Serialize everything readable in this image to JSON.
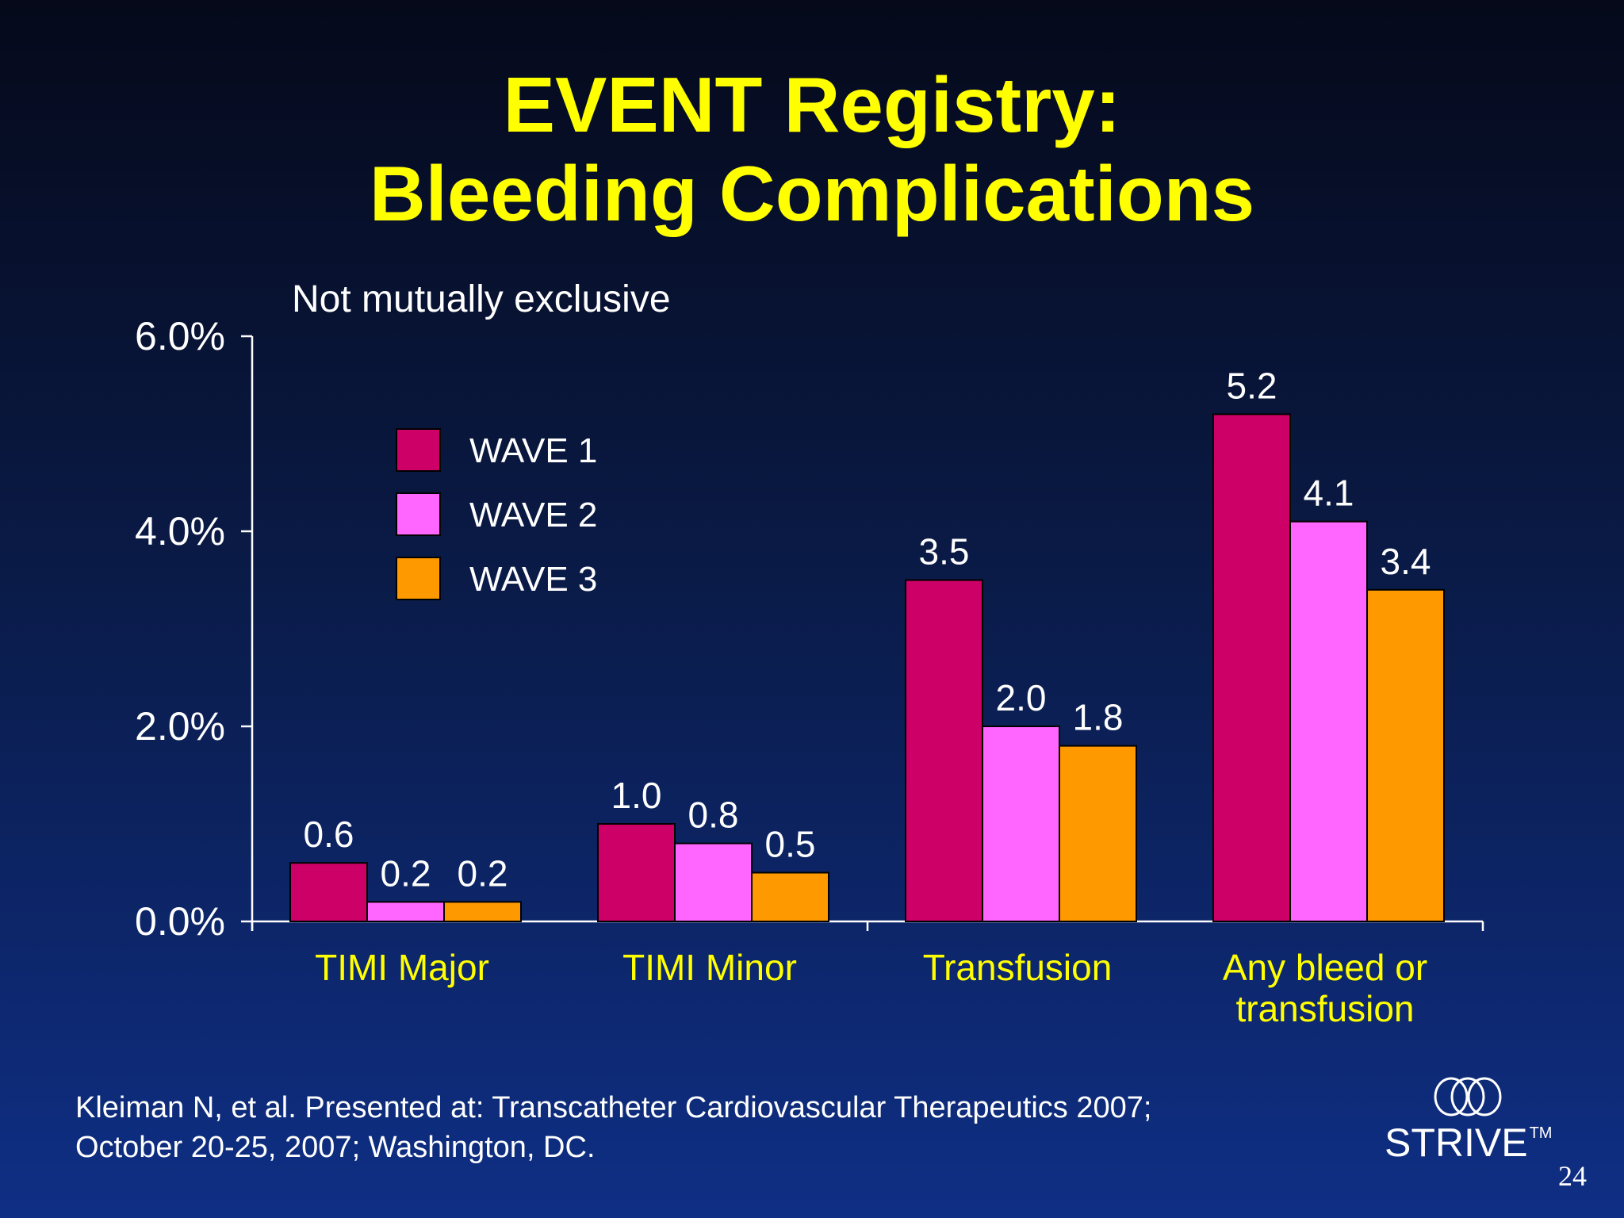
{
  "slide": {
    "title_line1": "EVENT Registry:",
    "title_line2": "Bleeding Complications",
    "note": "Not mutually exclusive",
    "citation_line1": "Kleiman N, et al. Presented at: Transcatheter Cardiovascular Therapeutics 2007;",
    "citation_line2": "October 20-25, 2007; Washington, DC.",
    "brand": "STRIVE",
    "brand_mark": "TM",
    "page_number": "24"
  },
  "colors": {
    "background_top": "#05091a",
    "background_bottom": "#0f2f85",
    "title": "#ffff00",
    "category_labels": "#ffff00",
    "text": "#ffffff",
    "axis": "#ffffff"
  },
  "chart_data": {
    "type": "bar",
    "title": "",
    "xlabel": "",
    "ylabel": "",
    "categories": [
      [
        "TIMI Major"
      ],
      [
        "TIMI Minor"
      ],
      [
        "Transfusion"
      ],
      [
        "Any bleed or",
        "transfusion"
      ]
    ],
    "series": [
      {
        "name": "WAVE 1",
        "color": "#cc0066",
        "values": [
          0.6,
          1.0,
          3.5,
          5.2
        ],
        "labels": [
          "0.6",
          "1.0",
          "3.5",
          "5.2"
        ]
      },
      {
        "name": "WAVE 2",
        "color": "#ff66ff",
        "values": [
          0.2,
          0.8,
          2.0,
          4.1
        ],
        "labels": [
          "0.2",
          "0.8",
          "2.0",
          "4.1"
        ]
      },
      {
        "name": "WAVE 3",
        "color": "#ff9900",
        "values": [
          0.2,
          0.5,
          1.8,
          3.4
        ],
        "labels": [
          "0.2",
          "0.5",
          "1.8",
          "3.4"
        ]
      }
    ],
    "ylim": [
      0,
      6
    ],
    "yticks": [
      0,
      2,
      4,
      6
    ],
    "ytick_labels": [
      "0.0%",
      "2.0%",
      "4.0%",
      "6.0%"
    ],
    "legend_position": "top-left",
    "grid": false
  }
}
